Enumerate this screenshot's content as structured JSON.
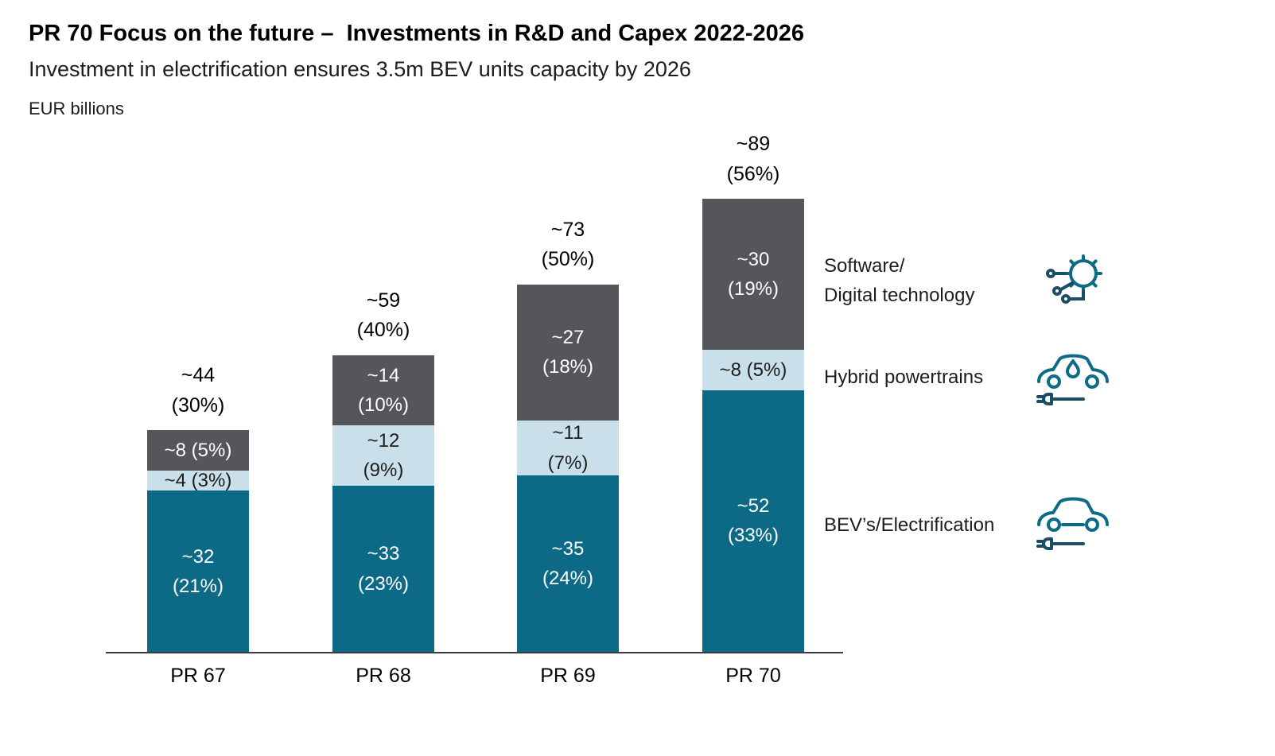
{
  "header": {
    "title": "PR 70 Focus on the future –  Investments in R&D and Capex 2022-2026",
    "subtitle": "Investment in electrification ensures 3.5m BEV units capacity by 2026",
    "units": "EUR billions"
  },
  "chart_data": {
    "type": "bar",
    "stacked": true,
    "title": "PR 70 Focus on the future – Investments in R&D and Capex 2022-2026",
    "subtitle": "Investment in electrification ensures 3.5m BEV units capacity by 2026",
    "ylabel": "EUR billions",
    "legend_position": "right",
    "grid": false,
    "categories": [
      "PR 67",
      "PR 68",
      "PR 69",
      "PR 70"
    ],
    "totals": {
      "values": [
        44,
        59,
        73,
        89
      ],
      "labels": [
        [
          "~44",
          "(30%)"
        ],
        [
          "~59",
          "(40%)"
        ],
        [
          "~73",
          "(50%)"
        ],
        [
          "~89",
          "(56%)"
        ]
      ]
    },
    "series": [
      {
        "name": "BEV's/Electrification",
        "color": "#0c6a86",
        "text_color": "#ffffff",
        "values": [
          32,
          33,
          35,
          52
        ],
        "labels": [
          [
            "~32",
            "(21%)"
          ],
          [
            "~33",
            "(23%)"
          ],
          [
            "~35",
            "(24%)"
          ],
          [
            "~52",
            "(33%)"
          ]
        ]
      },
      {
        "name": "Hybrid powertrains",
        "color": "#c9dfe9",
        "text_color": "#1d1d1b",
        "values": [
          4,
          12,
          11,
          8
        ],
        "labels": [
          [
            "~4 (3%)"
          ],
          [
            "~12",
            "(9%)"
          ],
          [
            "~11",
            "(7%)"
          ],
          [
            "~8 (5%)"
          ]
        ]
      },
      {
        "name": "Software/Digital technology",
        "color": "#54565a",
        "text_color": "#ffffff",
        "values": [
          8,
          14,
          27,
          30
        ],
        "labels": [
          [
            "~8 (5%)"
          ],
          [
            "~14",
            "(10%)"
          ],
          [
            "~27",
            "(18%)"
          ],
          [
            "~30",
            "(19%)"
          ]
        ]
      }
    ]
  },
  "legend": {
    "items": [
      {
        "label_lines": [
          "Software/",
          "Digital technology"
        ],
        "icon": "software-digital-icon"
      },
      {
        "label_lines": [
          "Hybrid powertrains"
        ],
        "icon": "hybrid-powertrain-icon"
      },
      {
        "label_lines": [
          "BEV’s/Electrification"
        ],
        "icon": "bev-electrification-icon"
      }
    ]
  },
  "colors": {
    "bev": "#0c6a86",
    "hybrid": "#c9dfe9",
    "software": "#54565a",
    "icon_primary": "#0e6b85",
    "icon_secondary": "#1c4d66"
  }
}
